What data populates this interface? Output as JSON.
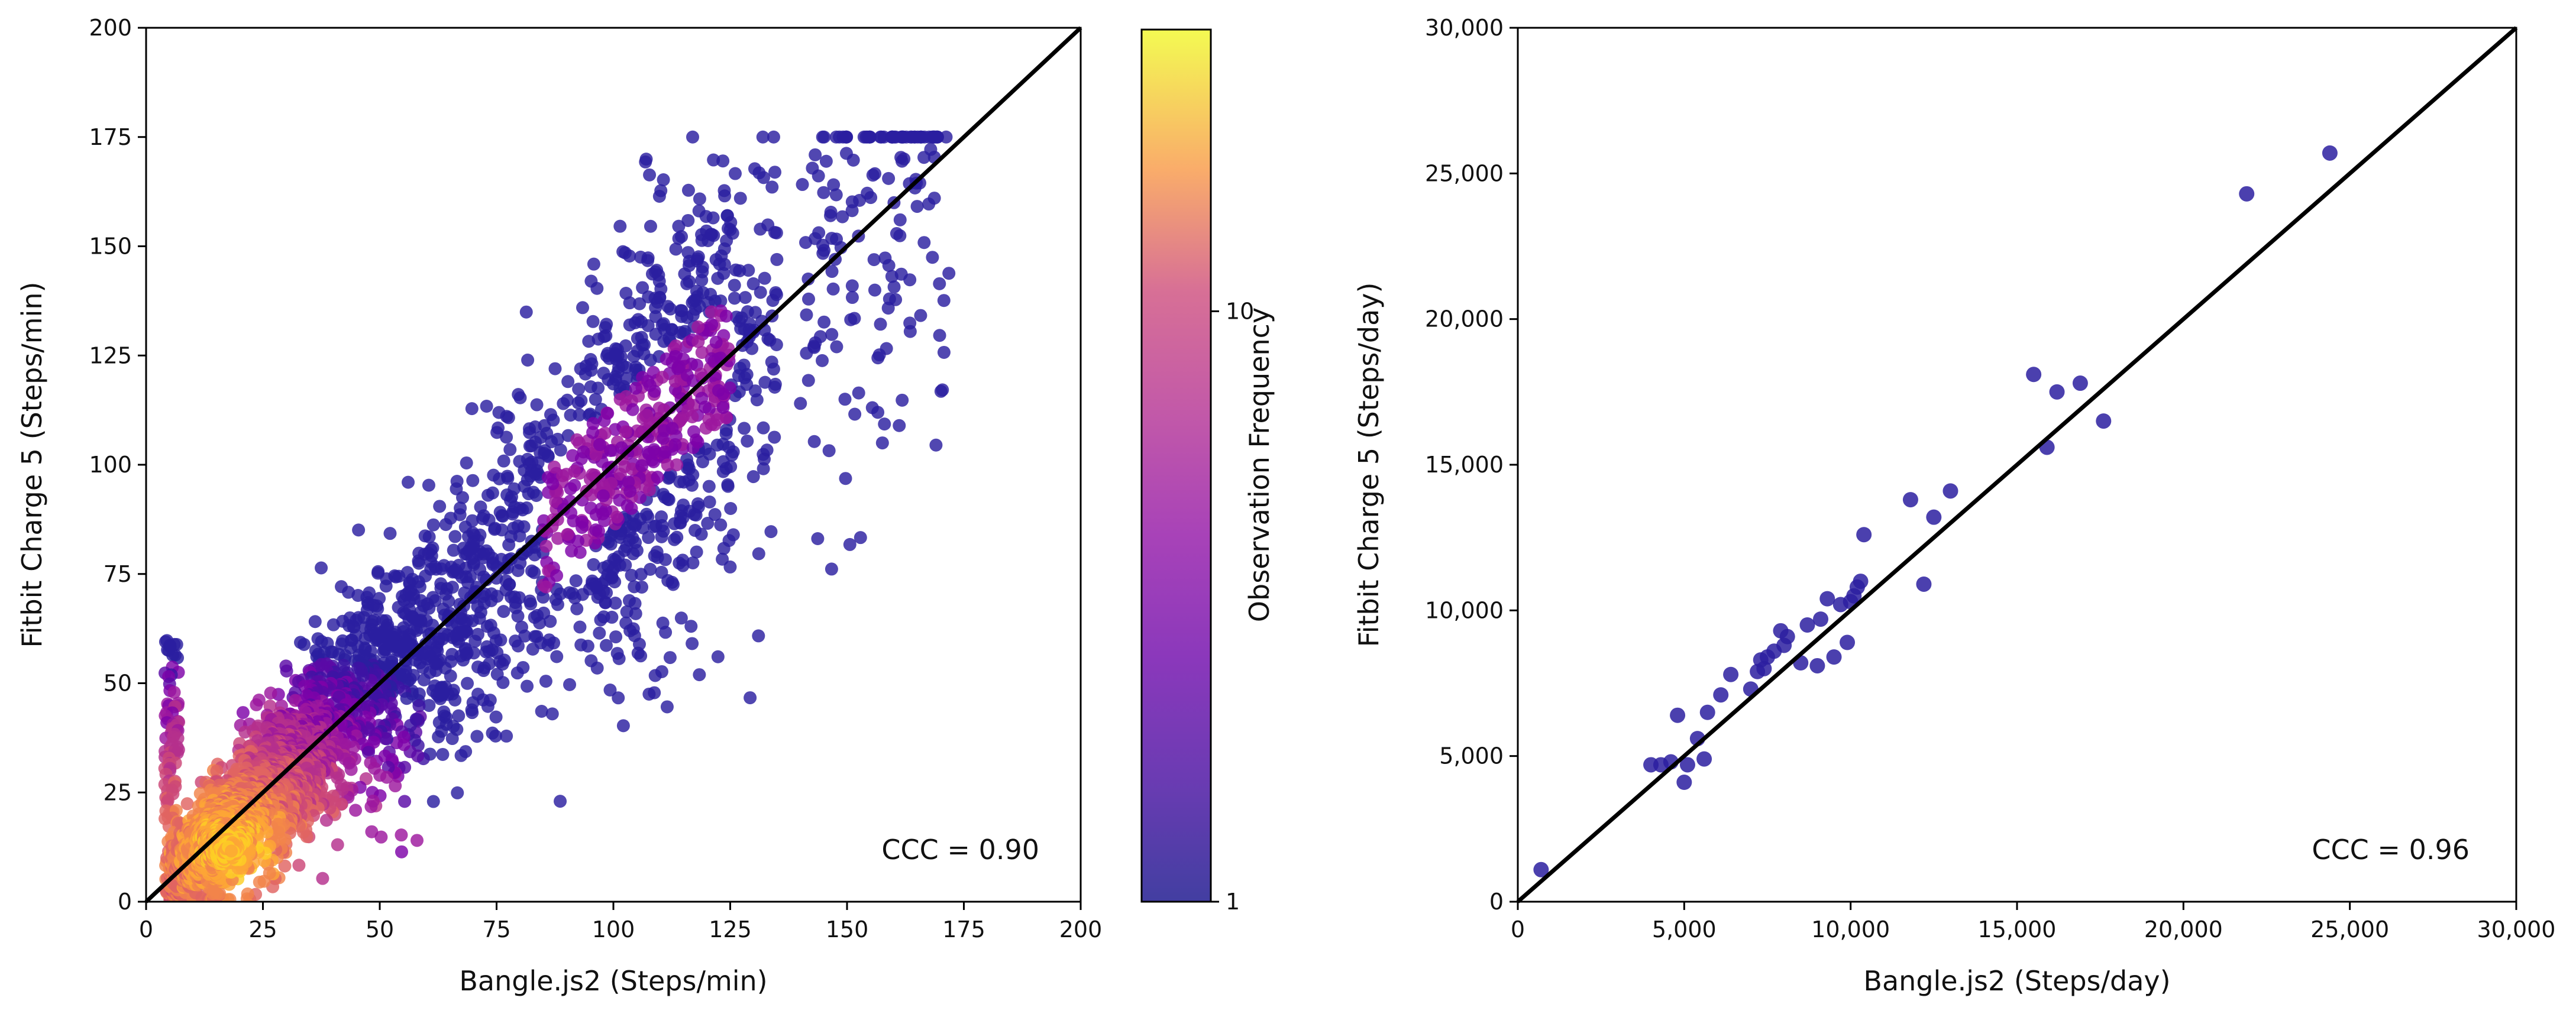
{
  "chart_data": [
    {
      "type": "scatter",
      "variant": "density-colored scatter with identity line",
      "xlabel": "Bangle.js2 (Steps/min)",
      "ylabel": "Fitbit Charge 5 (Steps/min)",
      "xlim": [
        0,
        200
      ],
      "ylim": [
        0,
        200
      ],
      "xticks": [
        0,
        25,
        50,
        75,
        100,
        125,
        150,
        175,
        200
      ],
      "yticks": [
        0,
        25,
        50,
        75,
        100,
        125,
        150,
        175,
        200
      ],
      "xtick_labels": [
        "0",
        "25",
        "50",
        "75",
        "100",
        "125",
        "150",
        "175",
        "200"
      ],
      "ytick_labels": [
        "0",
        "25",
        "50",
        "75",
        "100",
        "125",
        "150",
        "175",
        "200"
      ],
      "grid": false,
      "identity_line": {
        "from": [
          0,
          0
        ],
        "to": [
          200,
          200
        ],
        "color": "#000000"
      },
      "annotation": "CCC = 0.90",
      "annotation_position": "bottom-right",
      "colorbar": {
        "label": "Observation Frequency",
        "scale": "log",
        "colormap": "plasma",
        "range": [
          1,
          30
        ],
        "ticks": [
          1,
          10
        ],
        "tick_labels": [
          "1",
          "10"
        ]
      },
      "points_description": "Approximately 8,000+ minute-level paired observations; dense cluster near the origin (0-60 steps/min) concentrated along the identity line, dispersion increasing with cadence, tight cluster near 150-175.",
      "point_color_low": "#2b1fa0",
      "point_color_high": "#f0f921"
    },
    {
      "type": "scatter",
      "xlabel": "Bangle.js2 (Steps/day)",
      "ylabel": "Fitbit Charge 5 (Steps/day)",
      "xlim": [
        0,
        30000
      ],
      "ylim": [
        0,
        30000
      ],
      "xticks": [
        0,
        5000,
        10000,
        15000,
        20000,
        25000,
        30000
      ],
      "yticks": [
        0,
        5000,
        10000,
        15000,
        20000,
        25000,
        30000
      ],
      "xtick_labels": [
        "0",
        "5,000",
        "10,000",
        "15,000",
        "20,000",
        "25,000",
        "30,000"
      ],
      "ytick_labels": [
        "0",
        "5,000",
        "10,000",
        "15,000",
        "20,000",
        "25,000",
        "30,000"
      ],
      "grid": false,
      "identity_line": {
        "from": [
          0,
          0
        ],
        "to": [
          30000,
          30000
        ],
        "color": "#000000"
      },
      "annotation": "CCC = 0.96",
      "annotation_position": "bottom-right",
      "point_color": "#2b1fa0",
      "x": [
        700,
        4000,
        4300,
        4600,
        4800,
        5000,
        5100,
        5400,
        5600,
        5700,
        6100,
        6400,
        7000,
        7200,
        7300,
        7400,
        7500,
        7700,
        7900,
        8000,
        8100,
        8500,
        8700,
        9000,
        9100,
        9300,
        9500,
        9700,
        9900,
        10000,
        10100,
        10200,
        10300,
        10400,
        11800,
        12200,
        12500,
        13000,
        15500,
        15900,
        16200,
        16900,
        17600,
        21900,
        24400
      ],
      "y": [
        1100,
        4700,
        4700,
        4800,
        6400,
        4100,
        4700,
        5600,
        4900,
        6500,
        7100,
        7800,
        7300,
        7900,
        8300,
        8000,
        8400,
        8600,
        9300,
        8800,
        9100,
        8200,
        9500,
        8100,
        9700,
        10400,
        8400,
        10200,
        8900,
        10300,
        10500,
        10800,
        11000,
        12600,
        13800,
        10900,
        13200,
        14100,
        18100,
        15600,
        17500,
        17800,
        16500,
        24300,
        25700
      ]
    }
  ]
}
